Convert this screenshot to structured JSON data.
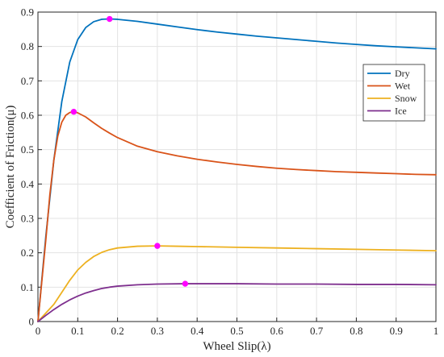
{
  "chart_data": {
    "type": "line",
    "title": "",
    "xlabel": "Wheel Slip(λ)",
    "ylabel": "Coefficient of Friction(μ)",
    "xlim": [
      0,
      1
    ],
    "ylim": [
      0,
      0.9
    ],
    "xticks": [
      0,
      0.1,
      0.2,
      0.3,
      0.4,
      0.5,
      0.6,
      0.7,
      0.8,
      0.9,
      1
    ],
    "xtick_labels": [
      "0",
      "0.1",
      "0.2",
      "0.3",
      "0.4",
      "0.5",
      "0.6",
      "0.7",
      "0.8",
      "0.9",
      "1"
    ],
    "yticks": [
      0,
      0.1,
      0.2,
      0.3,
      0.4,
      0.5,
      0.6,
      0.7,
      0.8,
      0.9
    ],
    "ytick_labels": [
      "0",
      "0.1",
      "0.2",
      "0.3",
      "0.4",
      "0.5",
      "0.6",
      "0.7",
      "0.8",
      "0.9"
    ],
    "grid": true,
    "legend_position": "right",
    "series": [
      {
        "name": "Dry",
        "color": "#0072BD",
        "x": [
          0,
          0.02,
          0.04,
          0.06,
          0.08,
          0.1,
          0.12,
          0.14,
          0.16,
          0.18,
          0.2,
          0.25,
          0.3,
          0.35,
          0.4,
          0.45,
          0.5,
          0.55,
          0.6,
          0.65,
          0.7,
          0.75,
          0.8,
          0.85,
          0.9,
          0.95,
          1.0
        ],
        "y": [
          0,
          0.25,
          0.47,
          0.64,
          0.755,
          0.82,
          0.855,
          0.872,
          0.879,
          0.88,
          0.879,
          0.873,
          0.865,
          0.857,
          0.849,
          0.842,
          0.836,
          0.83,
          0.825,
          0.82,
          0.815,
          0.81,
          0.806,
          0.802,
          0.799,
          0.796,
          0.793
        ],
        "peak": {
          "x": 0.18,
          "y": 0.88
        }
      },
      {
        "name": "Wet",
        "color": "#D95319",
        "x": [
          0,
          0.01,
          0.02,
          0.03,
          0.04,
          0.05,
          0.06,
          0.07,
          0.08,
          0.09,
          0.1,
          0.12,
          0.14,
          0.16,
          0.18,
          0.2,
          0.25,
          0.3,
          0.35,
          0.4,
          0.45,
          0.5,
          0.55,
          0.6,
          0.65,
          0.7,
          0.75,
          0.8,
          0.85,
          0.9,
          0.95,
          1.0
        ],
        "y": [
          0,
          0.12,
          0.24,
          0.37,
          0.47,
          0.54,
          0.58,
          0.6,
          0.608,
          0.61,
          0.607,
          0.595,
          0.578,
          0.562,
          0.548,
          0.535,
          0.51,
          0.494,
          0.482,
          0.472,
          0.464,
          0.457,
          0.451,
          0.446,
          0.442,
          0.439,
          0.436,
          0.434,
          0.432,
          0.43,
          0.428,
          0.427
        ],
        "peak": {
          "x": 0.09,
          "y": 0.61
        }
      },
      {
        "name": "Snow",
        "color": "#EDB120",
        "x": [
          0,
          0.02,
          0.04,
          0.06,
          0.08,
          0.1,
          0.12,
          0.14,
          0.16,
          0.18,
          0.2,
          0.25,
          0.3,
          0.35,
          0.4,
          0.5,
          0.6,
          0.7,
          0.8,
          0.9,
          1.0
        ],
        "y": [
          0,
          0.025,
          0.05,
          0.085,
          0.12,
          0.15,
          0.172,
          0.189,
          0.201,
          0.209,
          0.214,
          0.219,
          0.22,
          0.219,
          0.218,
          0.216,
          0.214,
          0.212,
          0.21,
          0.208,
          0.206
        ],
        "peak": {
          "x": 0.3,
          "y": 0.22
        }
      },
      {
        "name": "Ice",
        "color": "#7E2F8E",
        "x": [
          0,
          0.02,
          0.04,
          0.06,
          0.08,
          0.1,
          0.12,
          0.14,
          0.16,
          0.18,
          0.2,
          0.25,
          0.3,
          0.37,
          0.4,
          0.5,
          0.6,
          0.7,
          0.8,
          0.9,
          1.0
        ],
        "y": [
          0,
          0.018,
          0.035,
          0.05,
          0.063,
          0.074,
          0.083,
          0.09,
          0.096,
          0.1,
          0.103,
          0.107,
          0.109,
          0.11,
          0.11,
          0.11,
          0.109,
          0.109,
          0.108,
          0.108,
          0.107
        ],
        "peak": {
          "x": 0.37,
          "y": 0.11
        }
      }
    ],
    "marker_color": "#FF00FF"
  }
}
